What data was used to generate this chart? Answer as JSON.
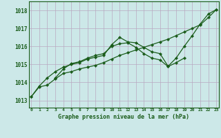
{
  "bg_color": "#cce8e8",
  "grid_color": "#b8a8c0",
  "line_color": "#1a5c1a",
  "title": "Graphe pression niveau de la mer (hPa)",
  "ylabel_values": [
    1013,
    1014,
    1015,
    1016,
    1017,
    1018
  ],
  "xlim": [
    -0.3,
    23.3
  ],
  "ylim": [
    1012.6,
    1018.5
  ],
  "figsize": [
    3.2,
    2.0
  ],
  "dpi": 100,
  "series": [
    {
      "x": [
        0,
        1,
        2,
        3,
        4,
        5,
        6,
        7,
        8,
        9,
        10,
        11,
        12,
        13,
        14,
        15,
        16,
        17,
        18,
        19,
        20,
        21,
        22,
        23
      ],
      "y": [
        1013.2,
        1013.75,
        1013.85,
        1014.2,
        1014.5,
        1014.6,
        1014.75,
        1014.85,
        1014.95,
        1015.1,
        1015.3,
        1015.5,
        1015.65,
        1015.8,
        1015.95,
        1016.1,
        1016.25,
        1016.4,
        1016.6,
        1016.8,
        1017.0,
        1017.2,
        1017.6,
        1018.05
      ]
    },
    {
      "x": [
        0,
        1,
        2,
        3,
        4,
        5,
        6,
        7,
        8,
        9,
        10,
        11,
        12,
        13,
        14,
        15,
        16,
        17,
        18,
        19,
        20,
        21,
        22,
        23
      ],
      "y": [
        1013.2,
        1013.8,
        1014.25,
        1014.6,
        1014.85,
        1015.0,
        1015.1,
        1015.3,
        1015.4,
        1015.5,
        1016.1,
        1016.5,
        1016.25,
        1016.2,
        1015.95,
        1015.7,
        1015.6,
        1014.9,
        1015.35,
        1016.0,
        1016.6,
        1017.25,
        1017.8,
        1018.05
      ]
    },
    {
      "x": [
        3,
        4,
        5,
        6,
        7,
        8,
        9,
        10,
        11,
        12,
        13,
        14,
        15,
        16,
        17,
        18,
        19
      ],
      "y": [
        1014.25,
        1014.75,
        1015.05,
        1015.15,
        1015.35,
        1015.5,
        1015.6,
        1016.0,
        1016.15,
        1016.2,
        1015.95,
        1015.6,
        1015.35,
        1015.25,
        1014.88,
        1015.1,
        1015.35
      ]
    }
  ]
}
